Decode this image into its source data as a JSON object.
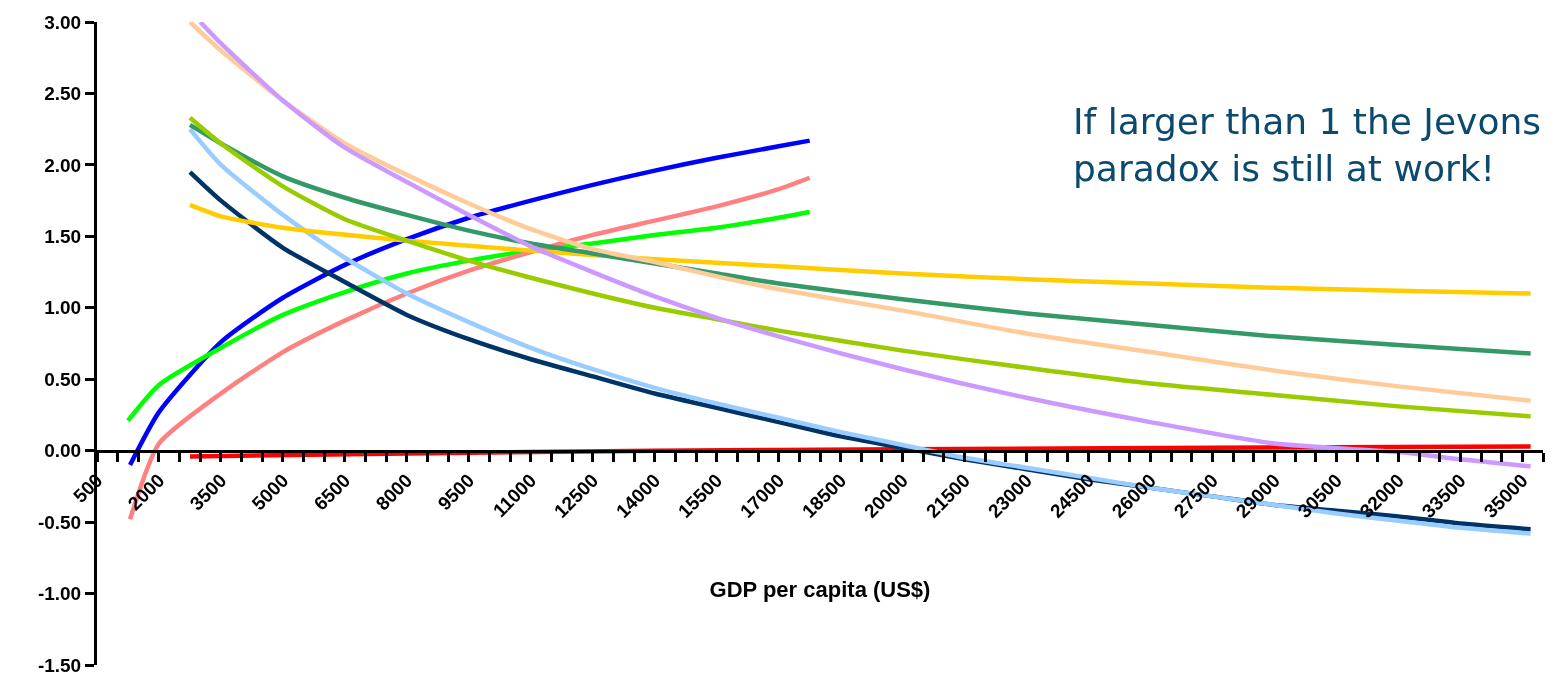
{
  "chart_data": {
    "type": "line",
    "xlabel": "GDP per capita (US$)",
    "annotations": [
      "If larger than 1 the Jevons\nparadox is still at work!"
    ],
    "xlim": [
      500,
      35500
    ],
    "xticks": [
      500,
      {
        "value": 1000,
        "label": null
      },
      {
        "value": 1500,
        "label": null
      },
      2000,
      {
        "value": 2500,
        "label": null
      },
      {
        "value": 3000,
        "label": null
      },
      3500,
      {
        "value": 4000,
        "label": null
      },
      {
        "value": 4500,
        "label": null
      },
      5000,
      {
        "value": 5500,
        "label": null
      },
      {
        "value": 6000,
        "label": null
      },
      6500,
      {
        "value": 7000,
        "label": null
      },
      {
        "value": 7500,
        "label": null
      },
      8000,
      {
        "value": 8500,
        "label": null
      },
      {
        "value": 9000,
        "label": null
      },
      9500,
      {
        "value": 10000,
        "label": null
      },
      {
        "value": 10500,
        "label": null
      },
      11000,
      {
        "value": 11500,
        "label": null
      },
      {
        "value": 12000,
        "label": null
      },
      12500,
      {
        "value": 13000,
        "label": null
      },
      {
        "value": 13500,
        "label": null
      },
      14000,
      {
        "value": 14500,
        "label": null
      },
      {
        "value": 15000,
        "label": null
      },
      15500,
      {
        "value": 16000,
        "label": null
      },
      {
        "value": 16500,
        "label": null
      },
      17000,
      {
        "value": 17500,
        "label": null
      },
      {
        "value": 18000,
        "label": null
      },
      18500,
      {
        "value": 19000,
        "label": null
      },
      {
        "value": 19500,
        "label": null
      },
      20000,
      {
        "value": 20500,
        "label": null
      },
      {
        "value": 21000,
        "label": null
      },
      21500,
      {
        "value": 22000,
        "label": null
      },
      {
        "value": 22500,
        "label": null
      },
      23000,
      {
        "value": 23500,
        "label": null
      },
      {
        "value": 24000,
        "label": null
      },
      24500,
      {
        "value": 25000,
        "label": null
      },
      {
        "value": 25500,
        "label": null
      },
      26000,
      {
        "value": 26500,
        "label": null
      },
      {
        "value": 27000,
        "label": null
      },
      27500,
      {
        "value": 28000,
        "label": null
      },
      {
        "value": 28500,
        "label": null
      },
      29000,
      {
        "value": 29500,
        "label": null
      },
      {
        "value": 30000,
        "label": null
      },
      30500,
      {
        "value": 31000,
        "label": null
      },
      {
        "value": 31500,
        "label": null
      },
      32000,
      {
        "value": 32500,
        "label": null
      },
      {
        "value": 33000,
        "label": null
      },
      33500,
      {
        "value": 34000,
        "label": null
      },
      {
        "value": 34500,
        "label": null
      },
      35000,
      {
        "value": 35500,
        "label": null
      }
    ],
    "ylim": [
      -1.5,
      3.0
    ],
    "yticks": [
      {
        "value": -1.5,
        "label": "-1.50"
      },
      {
        "value": -1.0,
        "label": "-1.00"
      },
      {
        "value": -0.5,
        "label": "-0.50"
      },
      {
        "value": 0,
        "label": "0.00"
      },
      {
        "value": 0.5,
        "label": "0.50"
      },
      {
        "value": 1.0,
        "label": "1.00"
      },
      {
        "value": 1.5,
        "label": "1.50"
      },
      {
        "value": 2.0,
        "label": "2.00"
      },
      {
        "value": 2.5,
        "label": "2.50"
      },
      {
        "value": 3.0,
        "label": "3.00"
      }
    ],
    "marker": "none",
    "line_style": "solid",
    "series": [
      {
        "color": "#0000ff",
        "x": [
          1300,
          2000,
          3500,
          5000,
          6500,
          8000,
          9500,
          11000,
          12500,
          14000,
          15500,
          17000,
          17750
        ],
        "values": [
          -0.1,
          0.27,
          0.76,
          1.07,
          1.3,
          1.48,
          1.63,
          1.75,
          1.86,
          1.96,
          2.05,
          2.13,
          2.17
        ]
      },
      {
        "color": "#00ff00",
        "x": [
          1250,
          2000,
          3500,
          5000,
          6500,
          8000,
          9500,
          11000,
          12500,
          14000,
          15500,
          17000,
          17750
        ],
        "values": [
          0.21,
          0.46,
          0.72,
          0.95,
          1.11,
          1.24,
          1.33,
          1.4,
          1.45,
          1.51,
          1.56,
          1.63,
          1.67
        ]
      },
      {
        "color": "#ff8080",
        "x": [
          1300,
          2000,
          3500,
          5000,
          6500,
          8000,
          9500,
          11000,
          12500,
          14000,
          15500,
          17000,
          17750
        ],
        "values": [
          -0.48,
          0.05,
          0.4,
          0.69,
          0.91,
          1.1,
          1.26,
          1.39,
          1.51,
          1.61,
          1.71,
          1.83,
          1.91
        ]
      },
      {
        "color": "#ff0000",
        "x": [
          2750,
          8000,
          14000,
          20000,
          27500,
          35200
        ],
        "values": [
          -0.04,
          -0.02,
          0.0,
          0.01,
          0.02,
          0.03
        ]
      },
      {
        "color": "#003366",
        "x": [
          2750,
          3500,
          5000,
          6500,
          8000,
          9500,
          11000,
          12500,
          14000,
          15500,
          17000,
          18500,
          20000,
          21500,
          23000,
          24500,
          26000,
          27500,
          29000,
          30500,
          32000,
          33500,
          35200
        ],
        "values": [
          1.95,
          1.75,
          1.42,
          1.18,
          0.95,
          0.78,
          0.64,
          0.52,
          0.4,
          0.3,
          0.2,
          0.1,
          0.02,
          -0.06,
          -0.13,
          -0.2,
          -0.26,
          -0.32,
          -0.38,
          -0.42,
          -0.46,
          -0.51,
          -0.55
        ]
      },
      {
        "color": "#99ccff",
        "x": [
          2750,
          3500,
          5000,
          6500,
          8000,
          9500,
          11000,
          12500,
          14000,
          15500,
          17000,
          18500,
          20000,
          21500,
          23000,
          24500,
          26000,
          27500,
          29000,
          30500,
          32000,
          33500,
          35200
        ],
        "values": [
          2.25,
          2.0,
          1.65,
          1.35,
          1.1,
          0.9,
          0.72,
          0.57,
          0.44,
          0.33,
          0.23,
          0.13,
          0.04,
          -0.05,
          -0.12,
          -0.19,
          -0.26,
          -0.32,
          -0.38,
          -0.44,
          -0.49,
          -0.54,
          -0.58
        ]
      },
      {
        "color": "#ffcc00",
        "x": [
          2750,
          3500,
          5000,
          8000,
          11000,
          14000,
          17000,
          20000,
          23000,
          26000,
          29000,
          32000,
          35200
        ],
        "values": [
          1.72,
          1.64,
          1.56,
          1.47,
          1.4,
          1.34,
          1.29,
          1.24,
          1.2,
          1.17,
          1.14,
          1.12,
          1.1
        ]
      },
      {
        "color": "#339966",
        "x": [
          2750,
          3500,
          5000,
          6500,
          8000,
          9500,
          11000,
          12500,
          14000,
          15500,
          17000,
          20000,
          23000,
          26000,
          29000,
          32000,
          35200
        ],
        "values": [
          2.28,
          2.15,
          1.92,
          1.77,
          1.65,
          1.54,
          1.45,
          1.38,
          1.31,
          1.24,
          1.17,
          1.06,
          0.96,
          0.88,
          0.8,
          0.74,
          0.68
        ]
      },
      {
        "color": "#99cc00",
        "x": [
          2750,
          3500,
          5000,
          6500,
          8000,
          9500,
          11000,
          12500,
          14000,
          15500,
          17000,
          20000,
          23000,
          26000,
          29000,
          32000,
          35200
        ],
        "values": [
          2.33,
          2.15,
          1.85,
          1.62,
          1.47,
          1.33,
          1.21,
          1.1,
          1.0,
          0.92,
          0.84,
          0.7,
          0.58,
          0.47,
          0.39,
          0.31,
          0.24
        ]
      },
      {
        "color": "#ffcc99",
        "x": [
          2750,
          3500,
          5000,
          6500,
          8000,
          9500,
          11000,
          12500,
          14000,
          15500,
          17000,
          20000,
          23000,
          26000,
          29000,
          32000,
          35200
        ],
        "values": [
          3.0,
          2.8,
          2.45,
          2.15,
          1.93,
          1.73,
          1.55,
          1.41,
          1.32,
          1.22,
          1.13,
          0.98,
          0.82,
          0.69,
          0.56,
          0.45,
          0.35
        ]
      },
      {
        "color": "#cc99ff",
        "x": [
          3000,
          3500,
          5000,
          6500,
          8000,
          9500,
          11000,
          12500,
          14000,
          15500,
          17000,
          20000,
          23000,
          26000,
          29000,
          32000,
          33500,
          35200
        ],
        "values": [
          3.0,
          2.85,
          2.45,
          2.12,
          1.88,
          1.65,
          1.43,
          1.25,
          1.08,
          0.93,
          0.8,
          0.57,
          0.37,
          0.2,
          0.05,
          -0.01,
          -0.06,
          -0.11
        ]
      }
    ]
  }
}
